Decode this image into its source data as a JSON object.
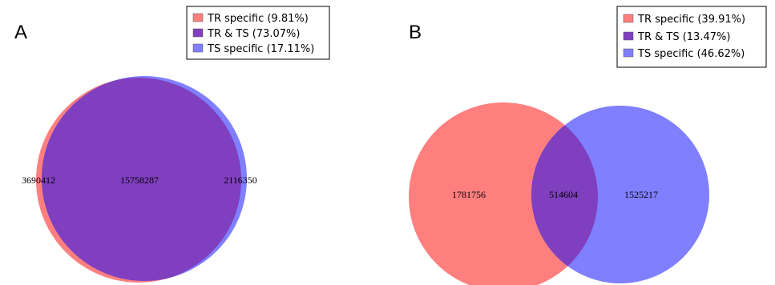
{
  "panels": [
    {
      "letter": "A",
      "legend": [
        {
          "label": "TR specific (9.81%)",
          "color": "#ff7f7f"
        },
        {
          "label": "TR & TS (73.07%)",
          "color": "#7f3fbf"
        },
        {
          "label": "TS specific (17.11%)",
          "color": "#7f7fff"
        }
      ],
      "counts": {
        "left_only": "3690412",
        "overlap": "15758287",
        "right_only": "2116350"
      }
    },
    {
      "letter": "B",
      "legend": [
        {
          "label": "TR specific (39.91%)",
          "color": "#ff7f7f"
        },
        {
          "label": "TR & TS (13.47%)",
          "color": "#7f3fbf"
        },
        {
          "label": "TS specific (46.62%)",
          "color": "#7f7fff"
        }
      ],
      "counts": {
        "left_only": "1781756",
        "overlap": "514604",
        "right_only": "1525217"
      }
    }
  ],
  "colors": {
    "tr": "#ff7f7f",
    "ts": "#7f7fff",
    "overlap": "#7f3fbf"
  }
}
